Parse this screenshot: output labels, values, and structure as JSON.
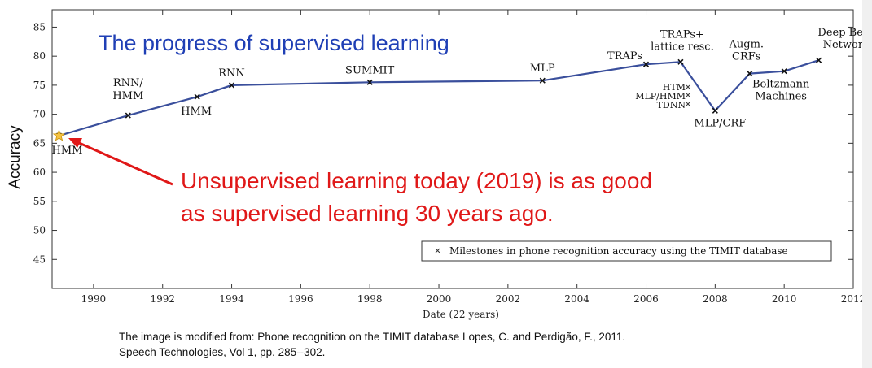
{
  "title": "The progress of supervised learning",
  "callout": [
    "Unsupervised learning today (2019) is as good",
    "as supervised learning 30 years ago."
  ],
  "caption": [
    "The image is modified from: Phone recognition on the TIMIT database Lopes, C. and Perdigão, F., 2011.",
    "Speech Technologies, Vol 1, pp. 285--302."
  ],
  "colors": {
    "line": "#3a4f9c",
    "title": "#1f3fb5",
    "callout": "#e01818",
    "star": "#f5c242"
  },
  "chart_data": {
    "type": "line",
    "xlabel": "Date (22 years)",
    "ylabel": "Accuracy",
    "xlim": [
      1988.8,
      2012
    ],
    "ylim": [
      40,
      88
    ],
    "xticks": [
      1990,
      1992,
      1994,
      1996,
      1998,
      2000,
      2002,
      2004,
      2006,
      2008,
      2010,
      2012
    ],
    "yticks": [
      45,
      50,
      55,
      60,
      65,
      70,
      75,
      80,
      85
    ],
    "legend": {
      "label": "Milestones in phone recognition accuracy using the TIMIT database",
      "position": "bottom-right"
    },
    "series": [
      {
        "x": [
          1989,
          1991,
          1993,
          1994,
          1998,
          2003,
          2006,
          2007,
          2008,
          2009,
          2010,
          2011
        ],
        "y": [
          66.3,
          69.8,
          73.0,
          75.0,
          75.5,
          75.8,
          78.6,
          79.0,
          70.6,
          77.0,
          77.4,
          79.3
        ]
      }
    ],
    "annotations": [
      {
        "x": 1989,
        "y": 66.3,
        "lines": [
          "HMM"
        ]
      },
      {
        "x": 1991,
        "y": 69.8,
        "lines": [
          "RNN/",
          "HMM"
        ]
      },
      {
        "x": 1993,
        "y": 73.0,
        "lines": [
          "HMM"
        ]
      },
      {
        "x": 1994,
        "y": 75.0,
        "lines": [
          "RNN"
        ]
      },
      {
        "x": 1998,
        "y": 75.5,
        "lines": [
          "SUMMIT"
        ]
      },
      {
        "x": 2003,
        "y": 75.8,
        "lines": [
          "MLP"
        ]
      },
      {
        "x": 2006,
        "y": 78.6,
        "lines": [
          "TRAPs"
        ]
      },
      {
        "x": 2007,
        "y": 79.0,
        "lines": [
          "TRAPs+",
          "lattice resc."
        ]
      },
      {
        "x": 2007,
        "y": 74.5,
        "lines": [
          "HTM",
          "MLP/HMM",
          "TDNN"
        ]
      },
      {
        "x": 2008,
        "y": 70.6,
        "lines": [
          "MLP/CRF"
        ]
      },
      {
        "x": 2009,
        "y": 77.0,
        "lines": [
          "Augm.",
          "CRFs"
        ]
      },
      {
        "x": 2010,
        "y": 77.4,
        "lines": [
          "Boltzmann",
          "Machines"
        ]
      },
      {
        "x": 2011,
        "y": 79.3,
        "lines": [
          "Deep Belief",
          "Networks"
        ]
      }
    ]
  }
}
